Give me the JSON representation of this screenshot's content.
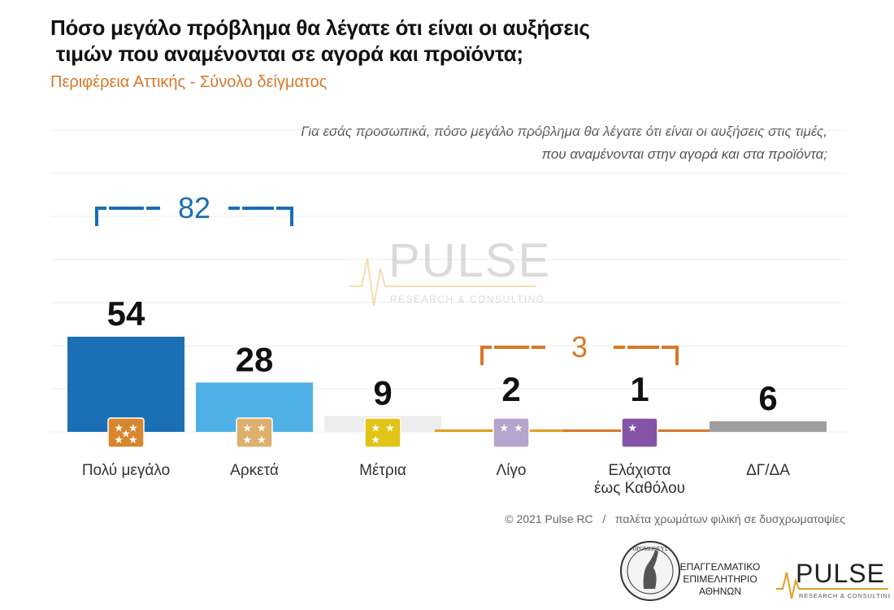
{
  "header": {
    "title_lines": [
      "Πόσο μεγάλο πρόβλημα θα λέγατε ότι είναι οι αυξήσεις",
      " τιμών που αναμένονται σε αγορά και προϊόντα;"
    ],
    "subtitle": "Περιφέρεια Αττικής - Σύνολο δείγματος"
  },
  "question_lines": [
    "Για εσάς προσωπικά, πόσο μεγάλο πρόβλημα θα λέγατε ότι είναι οι αυξήσεις στις τιμές,",
    "που αναμένονται στην αγορά και στα προϊόντα;"
  ],
  "chart_data": {
    "type": "bar",
    "categories": [
      "Πολύ μεγάλο",
      "Αρκετά",
      "Μέτρια",
      "Λίγο",
      "Ελάχιστα\nέως Καθόλου",
      "ΔΓ/ΔΑ"
    ],
    "category_lines": [
      [
        "Πολύ μεγάλο"
      ],
      [
        "Αρκετά"
      ],
      [
        "Μέτρια"
      ],
      [
        "Λίγο"
      ],
      [
        "Ελάχιστα",
        "έως Καθόλου"
      ],
      [
        "ΔΓ/ΔΑ"
      ]
    ],
    "values": [
      54,
      28,
      9,
      2,
      1,
      6
    ],
    "bar_colors": [
      "#1a6fb5",
      "#4fb0e6",
      "#ededed",
      "#e0a020",
      "#d8782a",
      "#9e9e9e"
    ],
    "icon_colors": [
      "#d8862e",
      "#ddb06e",
      "#e0c418",
      "#b6a4cc",
      "#8554a8",
      null
    ],
    "icon_stars": [
      5,
      4,
      3,
      2,
      1,
      0
    ],
    "groups": [
      {
        "label": "82",
        "from": 0,
        "to": 1,
        "color": "#1a6fb5"
      },
      {
        "label": "3",
        "from": 3,
        "to": 4,
        "color": "#d8782a"
      }
    ],
    "ylim": [
      0,
      60
    ],
    "grid": true
  },
  "watermark": {
    "name": "PULSE",
    "tagline": "RESEARCH & CONSULTING"
  },
  "footer": {
    "copyright": "© 2021 Pulse RC   /   παλέτα χρωμάτων φιλική σε δυσχρωματοψίες",
    "cci_lines": [
      "ΕΠΑΓΓΕΛΜΑΤΙΚΟ",
      "ΕΠΙΜΕΛΗΤΗΡΙΟ",
      "ΑΘΗΝΩΝ"
    ],
    "cci_seal_text": "ΠΡΟΜΗΘΕΥΣ",
    "pulse_name": "PULSE",
    "pulse_tagline": "RESEARCH & CONSULTING"
  }
}
